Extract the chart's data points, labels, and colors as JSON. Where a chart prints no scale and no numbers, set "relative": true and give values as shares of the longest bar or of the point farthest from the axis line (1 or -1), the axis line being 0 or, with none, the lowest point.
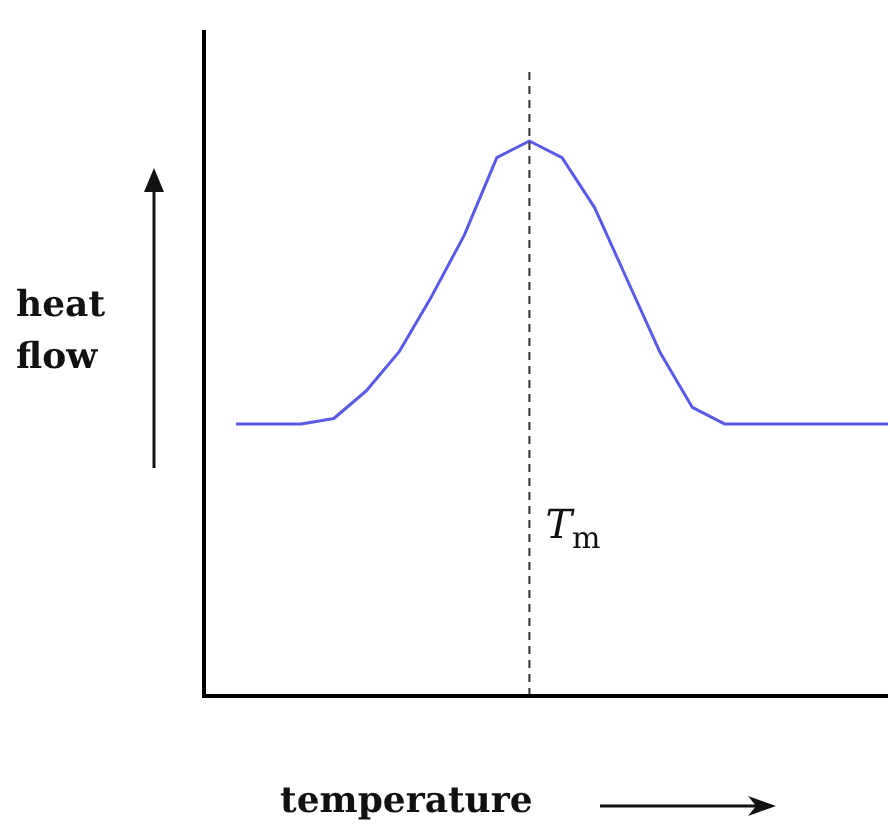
{
  "chart_data": {
    "type": "line",
    "relative": true,
    "xlabel": "temperature",
    "ylabel": "heat flow",
    "categories": [
      null,
      null,
      null,
      null,
      null,
      null,
      null,
      null,
      null,
      null,
      null,
      null,
      null,
      null,
      null,
      null,
      null,
      null,
      null,
      null,
      null
    ],
    "grid": false,
    "legend": false,
    "marker": "none",
    "line_style": "solid",
    "series": [
      {
        "color": "#5a5ae6",
        "values": [
          0.49,
          0.49,
          0.49,
          0.5,
          0.55,
          0.62,
          0.72,
          0.83,
          0.97,
          1,
          0.97,
          0.88,
          0.75,
          0.62,
          0.52,
          0.49,
          0.49,
          0.49,
          0.49,
          0.49,
          0.49
        ]
      }
    ],
    "ref_lines": [
      {
        "axis": "x",
        "label": "T$_{m}$",
        "line_style": "dashed",
        "color": "#333333"
      }
    ]
  }
}
